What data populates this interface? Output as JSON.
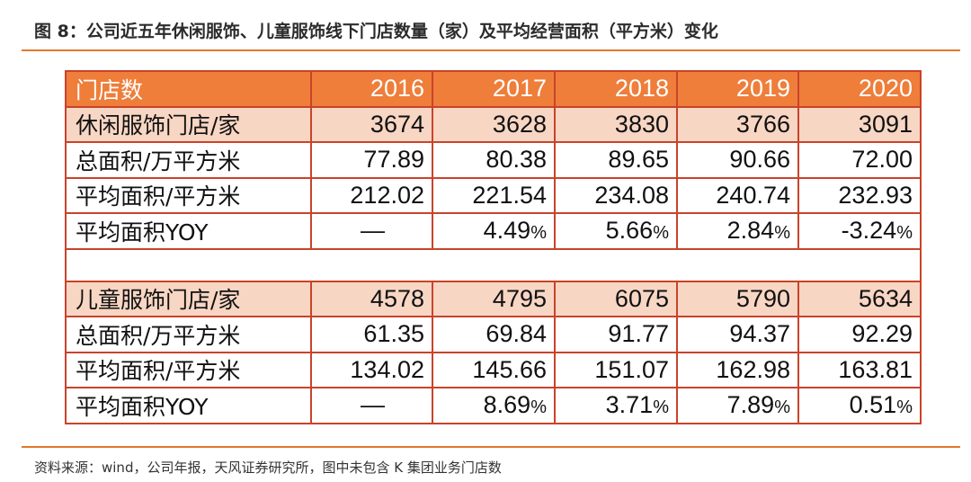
{
  "title": "图 8：公司近五年休闲服饰、儿童服饰线下门店数量（家）及平均经营面积（平方米）变化",
  "table": {
    "header": [
      "门店数",
      "2016",
      "2017",
      "2018",
      "2019",
      "2020"
    ],
    "casual": {
      "stores": {
        "label": "休闲服饰门店/家",
        "values": [
          "3674",
          "3628",
          "3830",
          "3766",
          "3091"
        ]
      },
      "area": {
        "label": "总面积/万平方米",
        "values": [
          "77.89",
          "80.38",
          "89.65",
          "90.66",
          "72.00"
        ]
      },
      "avg_area": {
        "label": "平均面积/平方米",
        "values": [
          "212.02",
          "221.54",
          "234.08",
          "240.74",
          "232.93"
        ]
      },
      "yoy": {
        "label": "平均面积YOY",
        "values": [
          "—",
          "4.49",
          "5.66",
          "2.84",
          "-3.24"
        ]
      }
    },
    "kids": {
      "stores": {
        "label": "儿童服饰门店/家",
        "values": [
          "4578",
          "4795",
          "6075",
          "5790",
          "5634"
        ]
      },
      "area": {
        "label": "总面积/万平方米",
        "values": [
          "61.35",
          "69.84",
          "91.77",
          "94.37",
          "92.29"
        ]
      },
      "avg_area": {
        "label": "平均面积/平方米",
        "values": [
          "134.02",
          "145.66",
          "151.07",
          "162.98",
          "163.81"
        ]
      },
      "yoy": {
        "label": "平均面积YOY",
        "values": [
          "—",
          "8.69",
          "3.71",
          "7.89",
          "0.51"
        ]
      }
    },
    "percent_sign": "%"
  },
  "source": "资料来源：wind，公司年报，天风证券研究所，图中未包含 K 集团业务门店数",
  "colors": {
    "header_bg": "#ee7e3a",
    "section_bg": "#f8d6c4",
    "border": "#c9432a",
    "rule": "#e3782c"
  }
}
